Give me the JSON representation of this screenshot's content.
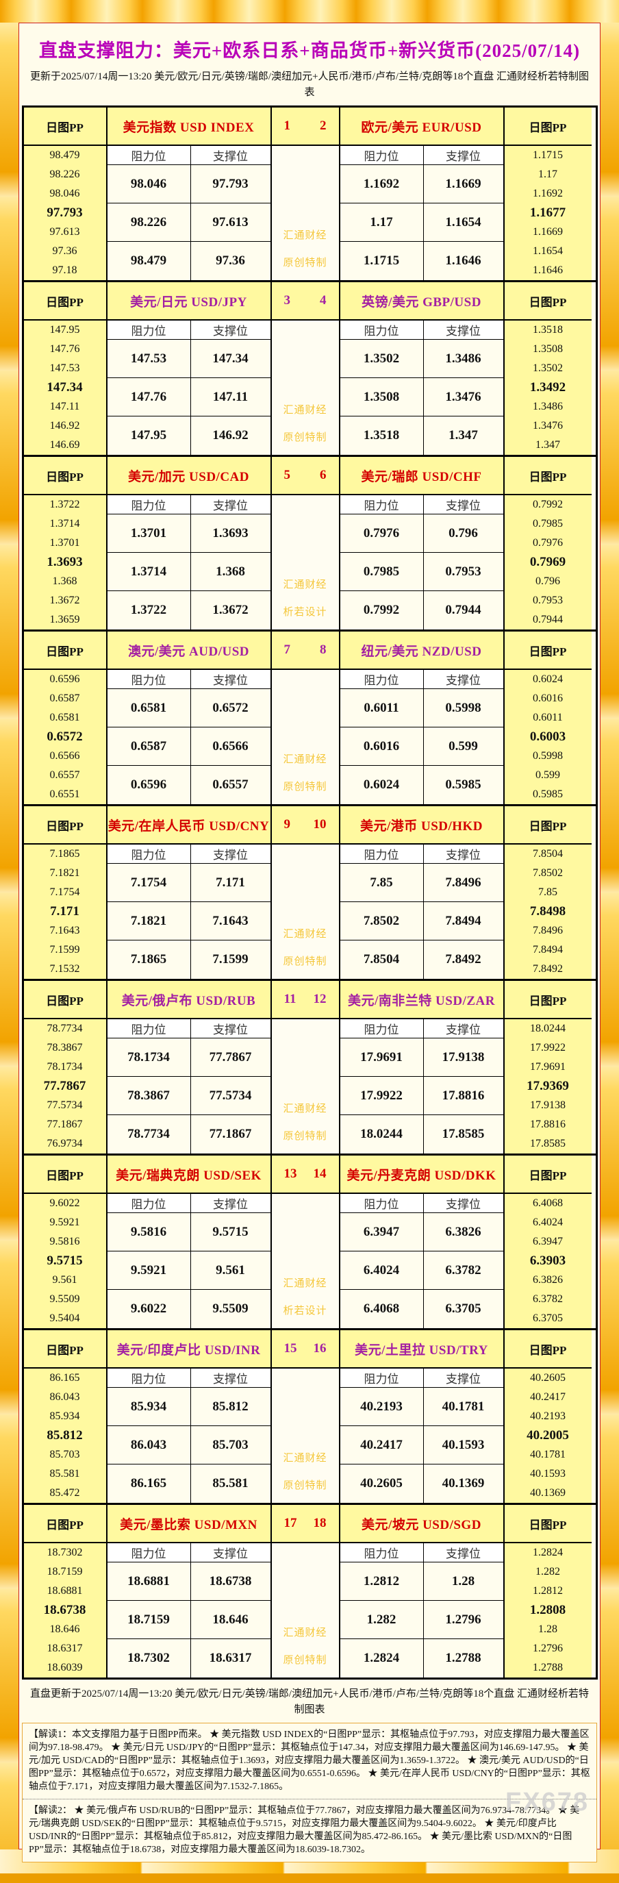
{
  "page": {
    "title": "直盘支撑阻力：美元+欧系日系+商品货币+新兴货币(2025/07/14)",
    "update_line": "更新于2025/07/14周一13:20 美元/欧元/日元/英镑/瑞郎/澳纽加元+人民币/港币/卢布/兰特/克朗等18个直盘 汇通财经析若特制图表",
    "footer_line": "直盘更新于2025/07/14周一13:20 美元/欧元/日元/英镑/瑞郎/澳纽加元+人民币/港币/卢布/兰特/克朗等18个直盘 汇通财经析若特制图表",
    "note1": "【解读1：本文支撑阻力基于日图PP而来。 ★ 美元指数 USD INDEX的“日图PP”显示：其枢轴点位于97.793，对应支撑阻力最大覆盖区间为97.18-98.479。 ★ 美元/日元 USD/JPY的“日图PP”显示：其枢轴点位于147.34，对应支撑阻力最大覆盖区间为146.69-147.95。 ★ 美元/加元 USD/CAD的“日图PP”显示：其枢轴点位于1.3693，对应支撑阻力最大覆盖区间为1.3659-1.3722。 ★ 澳元/美元 AUD/USD的“日图PP”显示：其枢轴点位于0.6572，对应支撑阻力最大覆盖区间为0.6551-0.6596。 ★ 美元/在岸人民币 USD/CNY的“日图PP”显示：其枢轴点位于7.171，对应支撑阻力最大覆盖区间为7.1532-7.1865。",
    "note2": "【解读2： ★ 美元/俄卢布 USD/RUB的“日图PP”显示：其枢轴点位于77.7867，对应支撑阻力最大覆盖区间为76.9734-78.7734。 ★ 美元/瑞典克朗 USD/SEK的“日图PP”显示：其枢轴点位于9.5715，对应支撑阻力最大覆盖区间为9.5404-9.6022。 ★ 美元/印度卢比 USD/INR的“日图PP”显示：其枢轴点位于85.812，对应支撑阻力最大覆盖区间为85.472-86.165。 ★ 美元/墨比索 USD/MXN的“日图PP”显示：其枢轴点位于18.6738，对应支撑阻力最大覆盖区间为18.6039-18.7302。",
    "brand": "FX678"
  },
  "labels": {
    "pp": "日图PP",
    "resistance": "阻力位",
    "support": "支撑位"
  },
  "colors": {
    "red_header": "#d40000",
    "purple_header": "#a31fa3",
    "title_magenta": "#b800b8",
    "watermark_gold": "#f4c430",
    "panel_cream": "#fffceb",
    "cell_yellow": "#fff9a0"
  },
  "blocks": [
    {
      "color": "red",
      "watermark": [
        "汇通财经",
        "原创特制"
      ],
      "left": {
        "num": "1",
        "name": "美元指数 USD INDEX",
        "pp": [
          "98.479",
          "98.226",
          "98.046",
          "97.793",
          "97.613",
          "97.36",
          "97.18"
        ],
        "rows": [
          [
            "98.046",
            "97.793"
          ],
          [
            "98.226",
            "97.613"
          ],
          [
            "98.479",
            "97.36"
          ]
        ]
      },
      "right": {
        "num": "2",
        "name": "欧元/美元 EUR/USD",
        "pp": [
          "1.1715",
          "1.17",
          "1.1692",
          "1.1677",
          "1.1669",
          "1.1654",
          "1.1646"
        ],
        "rows": [
          [
            "1.1692",
            "1.1669"
          ],
          [
            "1.17",
            "1.1654"
          ],
          [
            "1.1715",
            "1.1646"
          ]
        ]
      }
    },
    {
      "color": "purple",
      "watermark": [
        "汇通财经",
        "原创特制"
      ],
      "left": {
        "num": "3",
        "name": "美元/日元 USD/JPY",
        "pp": [
          "147.95",
          "147.76",
          "147.53",
          "147.34",
          "147.11",
          "146.92",
          "146.69"
        ],
        "rows": [
          [
            "147.53",
            "147.34"
          ],
          [
            "147.76",
            "147.11"
          ],
          [
            "147.95",
            "146.92"
          ]
        ]
      },
      "right": {
        "num": "4",
        "name": "英镑/美元 GBP/USD",
        "pp": [
          "1.3518",
          "1.3508",
          "1.3502",
          "1.3492",
          "1.3486",
          "1.3476",
          "1.347"
        ],
        "rows": [
          [
            "1.3502",
            "1.3486"
          ],
          [
            "1.3508",
            "1.3476"
          ],
          [
            "1.3518",
            "1.347"
          ]
        ]
      }
    },
    {
      "color": "red",
      "watermark": [
        "汇通财经",
        "析若设计"
      ],
      "left": {
        "num": "5",
        "name": "美元/加元 USD/CAD",
        "pp": [
          "1.3722",
          "1.3714",
          "1.3701",
          "1.3693",
          "1.368",
          "1.3672",
          "1.3659"
        ],
        "rows": [
          [
            "1.3701",
            "1.3693"
          ],
          [
            "1.3714",
            "1.368"
          ],
          [
            "1.3722",
            "1.3672"
          ]
        ]
      },
      "right": {
        "num": "6",
        "name": "美元/瑞郎 USD/CHF",
        "pp": [
          "0.7992",
          "0.7985",
          "0.7976",
          "0.7969",
          "0.796",
          "0.7953",
          "0.7944"
        ],
        "rows": [
          [
            "0.7976",
            "0.796"
          ],
          [
            "0.7985",
            "0.7953"
          ],
          [
            "0.7992",
            "0.7944"
          ]
        ]
      }
    },
    {
      "color": "purple",
      "watermark": [
        "汇通财经",
        "原创特制"
      ],
      "left": {
        "num": "7",
        "name": "澳元/美元 AUD/USD",
        "pp": [
          "0.6596",
          "0.6587",
          "0.6581",
          "0.6572",
          "0.6566",
          "0.6557",
          "0.6551"
        ],
        "rows": [
          [
            "0.6581",
            "0.6572"
          ],
          [
            "0.6587",
            "0.6566"
          ],
          [
            "0.6596",
            "0.6557"
          ]
        ]
      },
      "right": {
        "num": "8",
        "name": "纽元/美元 NZD/USD",
        "pp": [
          "0.6024",
          "0.6016",
          "0.6011",
          "0.6003",
          "0.5998",
          "0.599",
          "0.5985"
        ],
        "rows": [
          [
            "0.6011",
            "0.5998"
          ],
          [
            "0.6016",
            "0.599"
          ],
          [
            "0.6024",
            "0.5985"
          ]
        ]
      }
    },
    {
      "color": "red",
      "watermark": [
        "汇通财经",
        "原创特制"
      ],
      "left": {
        "num": "9",
        "name": "美元/在岸人民币 USD/CNY",
        "pp": [
          "7.1865",
          "7.1821",
          "7.1754",
          "7.171",
          "7.1643",
          "7.1599",
          "7.1532"
        ],
        "rows": [
          [
            "7.1754",
            "7.171"
          ],
          [
            "7.1821",
            "7.1643"
          ],
          [
            "7.1865",
            "7.1599"
          ]
        ]
      },
      "right": {
        "num": "10",
        "name": "美元/港币 USD/HKD",
        "pp": [
          "7.8504",
          "7.8502",
          "7.85",
          "7.8498",
          "7.8496",
          "7.8494",
          "7.8492"
        ],
        "rows": [
          [
            "7.85",
            "7.8496"
          ],
          [
            "7.8502",
            "7.8494"
          ],
          [
            "7.8504",
            "7.8492"
          ]
        ]
      }
    },
    {
      "color": "purple",
      "watermark": [
        "汇通财经",
        "原创特制"
      ],
      "left": {
        "num": "11",
        "name": "美元/俄卢布 USD/RUB",
        "pp": [
          "78.7734",
          "78.3867",
          "78.1734",
          "77.7867",
          "77.5734",
          "77.1867",
          "76.9734"
        ],
        "rows": [
          [
            "78.1734",
            "77.7867"
          ],
          [
            "78.3867",
            "77.5734"
          ],
          [
            "78.7734",
            "77.1867"
          ]
        ]
      },
      "right": {
        "num": "12",
        "name": "美元/南非兰特 USD/ZAR",
        "pp": [
          "18.0244",
          "17.9922",
          "17.9691",
          "17.9369",
          "17.9138",
          "17.8816",
          "17.8585"
        ],
        "rows": [
          [
            "17.9691",
            "17.9138"
          ],
          [
            "17.9922",
            "17.8816"
          ],
          [
            "18.0244",
            "17.8585"
          ]
        ]
      }
    },
    {
      "color": "red",
      "watermark": [
        "汇通财经",
        "析若设计"
      ],
      "left": {
        "num": "13",
        "name": "美元/瑞典克朗 USD/SEK",
        "pp": [
          "9.6022",
          "9.5921",
          "9.5816",
          "9.5715",
          "9.561",
          "9.5509",
          "9.5404"
        ],
        "rows": [
          [
            "9.5816",
            "9.5715"
          ],
          [
            "9.5921",
            "9.561"
          ],
          [
            "9.6022",
            "9.5509"
          ]
        ]
      },
      "right": {
        "num": "14",
        "name": "美元/丹麦克朗 USD/DKK",
        "pp": [
          "6.4068",
          "6.4024",
          "6.3947",
          "6.3903",
          "6.3826",
          "6.3782",
          "6.3705"
        ],
        "rows": [
          [
            "6.3947",
            "6.3826"
          ],
          [
            "6.4024",
            "6.3782"
          ],
          [
            "6.4068",
            "6.3705"
          ]
        ]
      }
    },
    {
      "color": "purple",
      "watermark": [
        "汇通财经",
        "原创特制"
      ],
      "left": {
        "num": "15",
        "name": "美元/印度卢比 USD/INR",
        "pp": [
          "86.165",
          "86.043",
          "85.934",
          "85.812",
          "85.703",
          "85.581",
          "85.472"
        ],
        "rows": [
          [
            "85.934",
            "85.812"
          ],
          [
            "86.043",
            "85.703"
          ],
          [
            "86.165",
            "85.581"
          ]
        ]
      },
      "right": {
        "num": "16",
        "name": "美元/土里拉 USD/TRY",
        "pp": [
          "40.2605",
          "40.2417",
          "40.2193",
          "40.2005",
          "40.1781",
          "40.1593",
          "40.1369"
        ],
        "rows": [
          [
            "40.2193",
            "40.1781"
          ],
          [
            "40.2417",
            "40.1593"
          ],
          [
            "40.2605",
            "40.1369"
          ]
        ]
      }
    },
    {
      "color": "red",
      "watermark": [
        "汇通财经",
        "原创特制"
      ],
      "left": {
        "num": "17",
        "name": "美元/墨比索 USD/MXN",
        "pp": [
          "18.7302",
          "18.7159",
          "18.6881",
          "18.6738",
          "18.646",
          "18.6317",
          "18.6039"
        ],
        "rows": [
          [
            "18.6881",
            "18.6738"
          ],
          [
            "18.7159",
            "18.646"
          ],
          [
            "18.7302",
            "18.6317"
          ]
        ]
      },
      "right": {
        "num": "18",
        "name": "美元/坡元 USD/SGD",
        "pp": [
          "1.2824",
          "1.282",
          "1.2812",
          "1.2808",
          "1.28",
          "1.2796",
          "1.2788"
        ],
        "rows": [
          [
            "1.2812",
            "1.28"
          ],
          [
            "1.282",
            "1.2796"
          ],
          [
            "1.2824",
            "1.2788"
          ]
        ]
      }
    }
  ]
}
